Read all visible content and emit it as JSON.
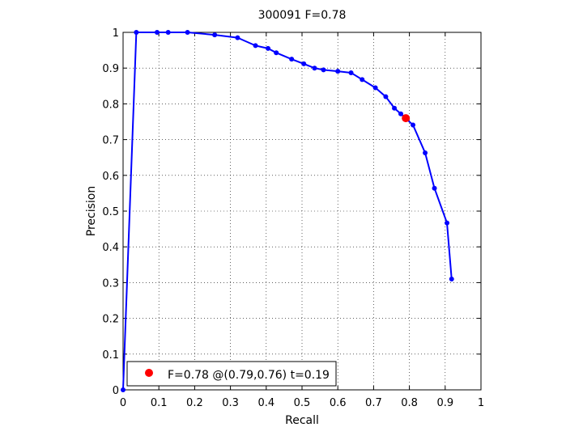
{
  "chart_data": {
    "type": "line",
    "title": "300091 F=0.78",
    "xlabel": "Recall",
    "ylabel": "Precision",
    "xlim": [
      0,
      1
    ],
    "ylim": [
      0,
      1
    ],
    "grid": true,
    "xticks": [
      0,
      0.1,
      0.2,
      0.3,
      0.4,
      0.5,
      0.6,
      0.7,
      0.8,
      0.9,
      1
    ],
    "yticks": [
      0,
      0.1,
      0.2,
      0.3,
      0.4,
      0.5,
      0.6,
      0.7,
      0.8,
      0.9,
      1
    ],
    "xtick_labels": [
      "0",
      "0.1",
      "0.2",
      "0.3",
      "0.4",
      "0.5",
      "0.6",
      "0.7",
      "0.8",
      "0.9",
      "1"
    ],
    "ytick_labels": [
      "0",
      "0.1",
      "0.2",
      "0.3",
      "0.4",
      "0.5",
      "0.6",
      "0.7",
      "0.8",
      "0.9",
      "1"
    ],
    "series": [
      {
        "color": "#0000ff",
        "x": [
          0.0,
          0.037,
          0.095,
          0.126,
          0.18,
          0.256,
          0.32,
          0.37,
          0.405,
          0.428,
          0.471,
          0.505,
          0.535,
          0.56,
          0.6,
          0.637,
          0.668,
          0.705,
          0.734,
          0.758,
          0.776,
          0.81,
          0.844,
          0.87,
          0.905,
          0.918
        ],
        "y": [
          0.0,
          1.0,
          1.0,
          1.0,
          1.0,
          0.993,
          0.985,
          0.963,
          0.955,
          0.943,
          0.925,
          0.912,
          0.9,
          0.895,
          0.891,
          0.887,
          0.868,
          0.845,
          0.82,
          0.788,
          0.772,
          0.741,
          0.663,
          0.564,
          0.467,
          0.31
        ]
      }
    ],
    "best_point": {
      "x": 0.79,
      "y": 0.76,
      "color": "#ff0000"
    },
    "legend": {
      "position": "bottom-left",
      "label": "F=0.78 @(0.79,0.76) t=0.19"
    }
  }
}
